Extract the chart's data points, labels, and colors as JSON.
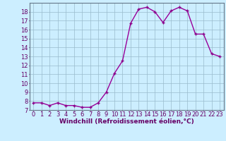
{
  "x": [
    0,
    1,
    2,
    3,
    4,
    5,
    6,
    7,
    8,
    9,
    10,
    11,
    12,
    13,
    14,
    15,
    16,
    17,
    18,
    19,
    20,
    21,
    22,
    23
  ],
  "y": [
    7.8,
    7.8,
    7.5,
    7.8,
    7.5,
    7.5,
    7.3,
    7.3,
    7.8,
    9.0,
    11.1,
    12.5,
    16.7,
    18.3,
    18.5,
    18.0,
    16.8,
    18.1,
    18.5,
    18.1,
    15.5,
    15.5,
    13.3,
    13.0
  ],
  "line_color": "#990099",
  "marker": "+",
  "marker_size": 3.5,
  "bg_color": "#cceeff",
  "grid_color": "#99bbcc",
  "xlabel": "Windchill (Refroidissement éolien,°C)",
  "xlim": [
    -0.5,
    23.5
  ],
  "ylim": [
    7,
    19
  ],
  "yticks": [
    7,
    8,
    9,
    10,
    11,
    12,
    13,
    14,
    15,
    16,
    17,
    18
  ],
  "xticks": [
    0,
    1,
    2,
    3,
    4,
    5,
    6,
    7,
    8,
    9,
    10,
    11,
    12,
    13,
    14,
    15,
    16,
    17,
    18,
    19,
    20,
    21,
    22,
    23
  ],
  "xlabel_fontsize": 6.5,
  "tick_fontsize": 6,
  "line_width": 1.0,
  "marker_color": "#880088"
}
